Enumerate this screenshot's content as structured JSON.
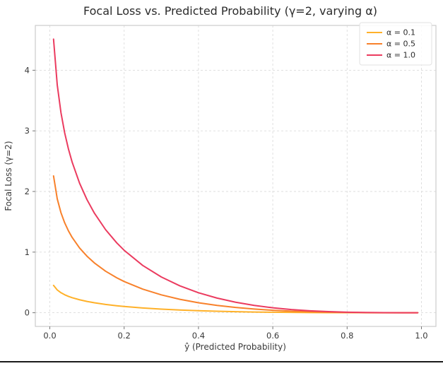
{
  "figure": {
    "title": "Focal Loss vs. Predicted Probability (γ=2, varying α)",
    "xlabel": "ŷ (Predicted Probability)",
    "ylabel": "Focal Loss (γ=2)"
  },
  "chart_data": {
    "type": "line",
    "title": "Focal Loss vs. Predicted Probability (γ=2, varying α)",
    "xlabel": "ŷ (Predicted Probability)",
    "ylabel": "Focal Loss (γ=2)",
    "xlim": [
      -0.039,
      1.039
    ],
    "ylim": [
      -0.226,
      4.739
    ],
    "xtick_values": [
      0.0,
      0.2,
      0.4,
      0.6,
      0.8,
      1.0
    ],
    "xtick_labels": [
      "0.0",
      "0.2",
      "0.4",
      "0.6",
      "0.8",
      "1.0"
    ],
    "ytick_values": [
      0,
      1,
      2,
      3,
      4
    ],
    "ytick_labels": [
      "0",
      "1",
      "2",
      "3",
      "4"
    ],
    "grid": true,
    "grid_color": "#dcdcdc",
    "spine_color": "#cccccc",
    "legend_position": "upper right",
    "x": [
      0.01,
      0.02,
      0.03,
      0.04,
      0.05,
      0.06,
      0.08,
      0.1,
      0.12,
      0.15,
      0.18,
      0.2,
      0.25,
      0.3,
      0.35,
      0.4,
      0.45,
      0.5,
      0.55,
      0.6,
      0.65,
      0.7,
      0.75,
      0.8,
      0.85,
      0.9,
      0.95,
      0.99
    ],
    "series": [
      {
        "name": "α = 0.1",
        "color": "#FFB129",
        "values": [
          0.4514,
          0.3757,
          0.33,
          0.2966,
          0.2704,
          0.2486,
          0.2138,
          0.1865,
          0.1642,
          0.1371,
          0.1153,
          0.103,
          0.078,
          0.059,
          0.0443,
          0.033,
          0.0241,
          0.0173,
          0.0121,
          0.0082,
          0.0053,
          0.0032,
          0.0018,
          0.0009,
          0.0004,
          0.0001,
          0.0,
          0.0
        ]
      },
      {
        "name": "α = 0.5",
        "color": "#F8812B",
        "values": [
          2.2568,
          1.8785,
          1.6498,
          1.4832,
          1.3518,
          1.243,
          1.0689,
          0.9326,
          0.821,
          0.6854,
          0.5765,
          0.515,
          0.3899,
          0.295,
          0.2217,
          0.1649,
          0.1208,
          0.0866,
          0.0605,
          0.0409,
          0.0264,
          0.0161,
          0.009,
          0.0045,
          0.0018,
          0.0005,
          0.0001,
          0.0
        ]
      },
      {
        "name": "α = 1.0",
        "color": "#EB3B5F",
        "values": [
          4.5135,
          3.7571,
          3.2996,
          2.9665,
          2.7036,
          2.486,
          2.1378,
          1.8651,
          1.642,
          1.3707,
          1.153,
          1.03,
          0.7798,
          0.5899,
          0.4435,
          0.3299,
          0.2415,
          0.1733,
          0.1211,
          0.0817,
          0.0528,
          0.0321,
          0.018,
          0.0089,
          0.0037,
          0.0011,
          0.0001,
          0.0
        ]
      }
    ]
  }
}
